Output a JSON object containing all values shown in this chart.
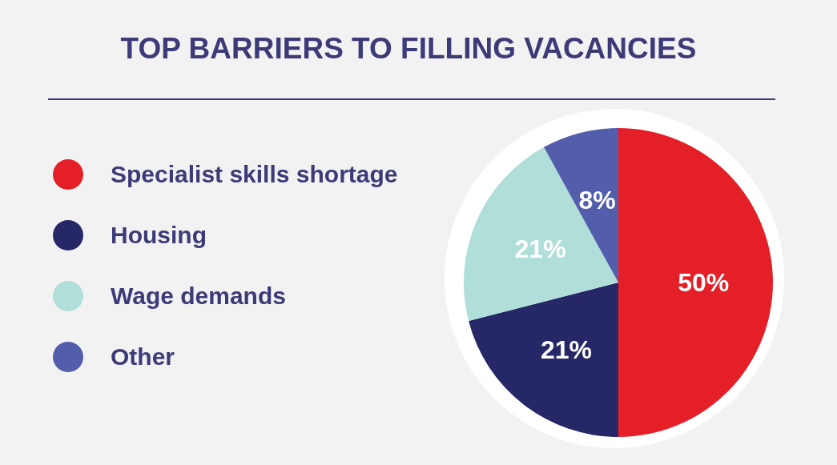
{
  "chart_data": {
    "type": "pie",
    "title": "TOP BARRIERS TO FILLING VACANCIES",
    "categories": [
      "Specialist skills shortage",
      "Housing",
      "Wage demands",
      "Other"
    ],
    "values": [
      50,
      21,
      21,
      8
    ],
    "colors": [
      "#e51f28",
      "#262766",
      "#b0ded9",
      "#525dab"
    ],
    "value_labels": [
      "50%",
      "21%",
      "21%",
      "8%"
    ],
    "legend": "left"
  }
}
